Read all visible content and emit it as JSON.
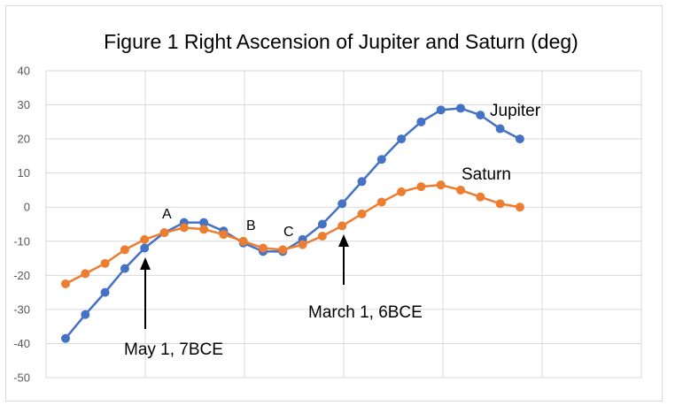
{
  "chart_data": {
    "type": "line",
    "title": "Figure 1 Right Ascension of Jupiter and Saturn (deg)",
    "xlabel": "",
    "ylabel": "",
    "ylim": [
      -50,
      40
    ],
    "yticks": [
      40,
      30,
      20,
      10,
      0,
      -10,
      -20,
      -30,
      -40,
      -50
    ],
    "grid": true,
    "x": [
      1,
      2,
      3,
      4,
      5,
      6,
      7,
      8,
      9,
      10,
      11,
      12,
      13,
      14,
      15,
      16,
      17,
      18,
      19,
      20,
      21,
      22,
      23,
      24
    ],
    "series": [
      {
        "name": "Jupiter",
        "color": "#4472c4",
        "values": [
          -38.5,
          -31.5,
          -25,
          -18,
          -12,
          -7.5,
          -4.5,
          -4.5,
          -7,
          -10.5,
          -13,
          -13,
          -9.5,
          -5,
          1,
          7.5,
          14,
          20,
          25,
          28.5,
          29,
          27,
          23,
          20
        ]
      },
      {
        "name": "Saturn",
        "color": "#ed7d31",
        "values": [
          -22.5,
          -19.5,
          -16.5,
          -12.5,
          -9.5,
          -7.5,
          -6,
          -6.5,
          -8,
          -10,
          -12,
          -12.5,
          -11,
          -8.5,
          -5.5,
          -2,
          1.5,
          4.5,
          6,
          6.5,
          5,
          3,
          1,
          0
        ]
      }
    ],
    "annotations": {
      "point_a": "A",
      "point_b": "B",
      "point_c": "C",
      "arrow_may": "May 1, 7BCE",
      "arrow_march": "March 1, 6BCE"
    }
  }
}
